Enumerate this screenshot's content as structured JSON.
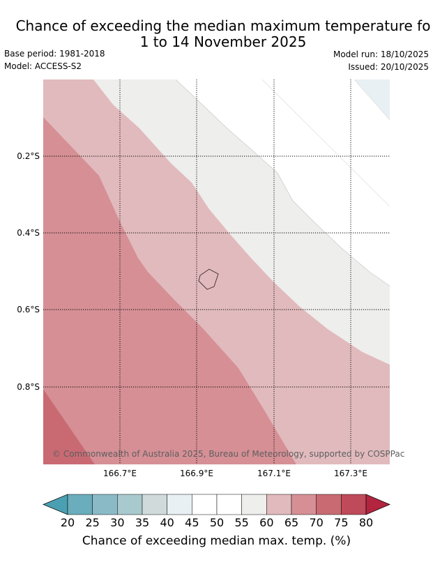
{
  "title_line1": "Chance of exceeding the median maximum temperature fo",
  "title_line2": "1 to 14 November 2025",
  "base_period": "Base period: 1981-2018",
  "model": "Model: ACCESS-S2",
  "model_run": "Model run: 18/10/2025",
  "issued": "Issued: 20/10/2025",
  "lat_labels": [
    "0.2°S",
    "0.4°S",
    "0.6°S",
    "0.8°S"
  ],
  "lon_labels": [
    "166.7°E",
    "166.9°E",
    "167.1°E",
    "167.3°E"
  ],
  "copyright": "© Commonwealth of Australia 2025, Bureau of Meteorology, supported by COSPPac",
  "colorbar": {
    "ticks": [
      "20",
      "25",
      "30",
      "35",
      "40",
      "45",
      "50",
      "55",
      "60",
      "65",
      "70",
      "75",
      "80"
    ],
    "colors": [
      "#6aadbd",
      "#8bbac7",
      "#a8c9ce",
      "#d0dadb",
      "#e9f0f3",
      "#ffffff",
      "#ffffff",
      "#eeeeec",
      "#e1babd",
      "#d58f95",
      "#c96a73",
      "#bf4a5a"
    ],
    "low_extend_color": "#4b9fb2",
    "high_extend_color": "#b3243f",
    "label": "Chance of exceeding median max. temp. (%)"
  }
}
